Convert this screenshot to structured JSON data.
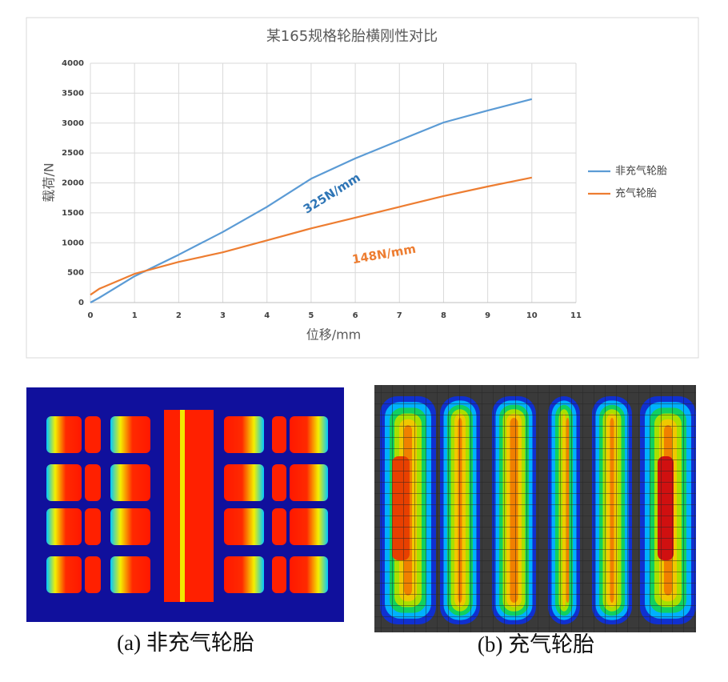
{
  "chart_data": {
    "type": "line",
    "title": "某165规格轮胎横刚性对比",
    "x_label": "位移/mm",
    "y_label": "载荷/N",
    "x": [
      0,
      0.2,
      1,
      2,
      3,
      4,
      5,
      6,
      7,
      8,
      9,
      10
    ],
    "series": [
      {
        "name": "非充气轮胎",
        "color": "#5b9bd5",
        "values": [
          0,
          80,
          440,
          800,
          1180,
          1600,
          2070,
          2410,
          2710,
          3010,
          3210,
          3400
        ]
      },
      {
        "name": "充气轮胎",
        "color": "#ed7d31",
        "values": [
          130,
          230,
          480,
          680,
          840,
          1040,
          1240,
          1420,
          1600,
          1780,
          1940,
          2090
        ]
      }
    ],
    "annotations": [
      {
        "text": "325N/mm",
        "color": "#2e75b6"
      },
      {
        "text": "148N/mm",
        "color": "#ed7d31"
      }
    ],
    "xlim": [
      0,
      11
    ],
    "xticks": [
      0,
      1,
      2,
      3,
      4,
      5,
      6,
      7,
      8,
      9,
      10,
      11
    ],
    "ylim": [
      0,
      4000
    ],
    "yticks": [
      0,
      500,
      1000,
      1500,
      2000,
      2500,
      3000,
      3500,
      4000
    ],
    "grid": true,
    "legend": "right"
  },
  "captions": [
    "(a) 非充气轮胎",
    "(b) 充气轮胎"
  ]
}
